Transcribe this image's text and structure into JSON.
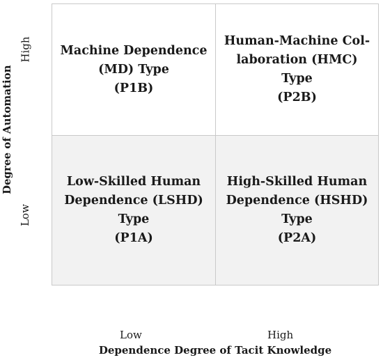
{
  "axes": {
    "y_label": "Degree of Automation",
    "y_high": "High",
    "y_low": "Low",
    "x_label": "Dependence Degree of Tacit Knowledge",
    "x_low": "Low",
    "x_high": "High"
  },
  "quadrants": {
    "top_left": {
      "line1": "Machine Dependence",
      "line2": "(MD) Type",
      "line3": "(P1B)"
    },
    "top_right": {
      "line1": "Human-Machine Col-",
      "line2": "laboration (HMC) Type",
      "line3": "(P2B)"
    },
    "bottom_left": {
      "line1": "Low-Skilled Human",
      "line2": "Dependence (LSHD)",
      "line3": "Type",
      "line4": "(P1A)"
    },
    "bottom_right": {
      "line1": "High-Skilled Human",
      "line2": "Dependence (HSHD)",
      "line3": "Type",
      "line4": "(P2A)"
    }
  },
  "colors": {
    "top_fill": "#ffffff",
    "bottom_fill": "#f2f2f2",
    "border": "#c9c9c9"
  }
}
